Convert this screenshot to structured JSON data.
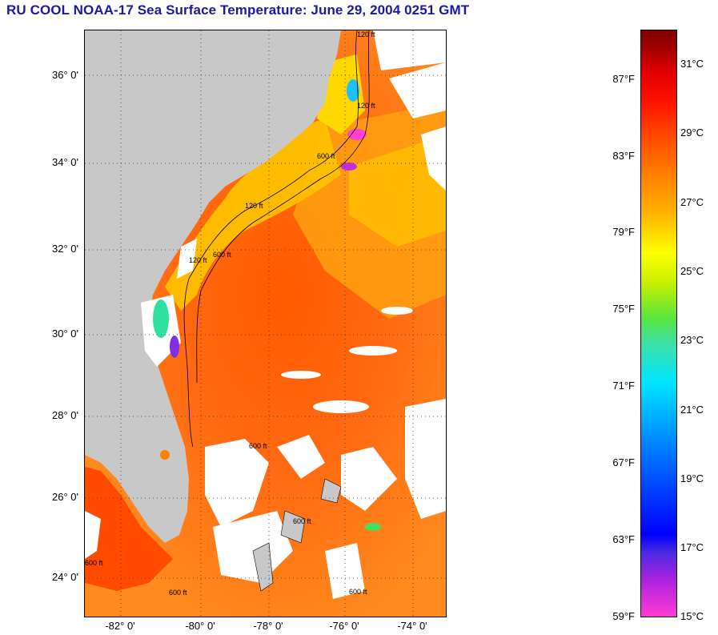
{
  "title": "RU COOL  NOAA-17  Sea Surface Temperature:  June 29, 2004 0251 GMT",
  "map": {
    "latitude_labels": [
      "36° 0'",
      "34° 0'",
      "32° 0'",
      "30° 0'",
      "28° 0'",
      "26° 0'",
      "24° 0'"
    ],
    "longitude_labels": [
      "-82° 0'",
      "-80° 0'",
      "-78° 0'",
      "-76° 0'",
      "-74° 0'"
    ],
    "contour_labels": [
      "120 ft",
      "120 ft",
      "120 ft",
      "600 ft",
      "600 ft",
      "600 ft",
      "600 ft",
      "600 ft",
      "120 ft",
      "600 ft",
      "600 ft"
    ],
    "colors": {
      "land": "#c8c8c8",
      "cloud": "#ffffff",
      "warm_water": "#ff6a10",
      "shelf_water": "#ffc800"
    }
  },
  "colorbar": {
    "fahrenheit_labels": [
      "87°F",
      "83°F",
      "79°F",
      "75°F",
      "71°F",
      "67°F",
      "63°F",
      "59°F"
    ],
    "celsius_labels": [
      "31°C",
      "29°C",
      "27°C",
      "25°C",
      "23°C",
      "21°C",
      "19°C",
      "17°C",
      "15°C"
    ]
  }
}
